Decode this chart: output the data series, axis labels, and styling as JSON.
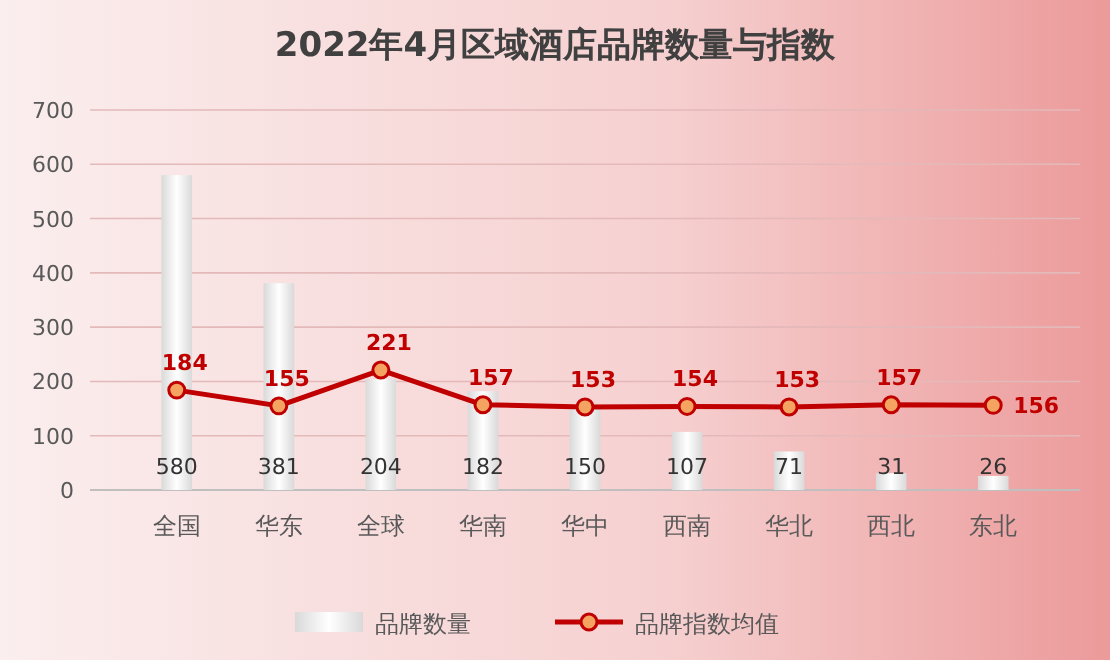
{
  "chart_data": {
    "type": "bar",
    "title": "2022年4月区域酒店品牌数量与指数",
    "categories": [
      "全国",
      "华东",
      "全球",
      "华南",
      "华中",
      "西南",
      "华北",
      "西北",
      "东北"
    ],
    "series": [
      {
        "name": "品牌数量",
        "color": "#d9d9d9",
        "values": [
          580,
          381,
          204,
          182,
          150,
          107,
          71,
          31,
          26
        ]
      },
      {
        "name": "品牌指数均值",
        "type": "line",
        "color": "#c00000",
        "values": [
          184,
          155,
          221,
          157,
          153,
          154,
          153,
          157,
          156
        ]
      }
    ],
    "ylim": [
      0,
      700
    ],
    "yticks": [
      0,
      100,
      200,
      300,
      400,
      500,
      600,
      700
    ],
    "grid": "y",
    "legend": "bottom",
    "marker": "circle",
    "data_labels": true
  }
}
